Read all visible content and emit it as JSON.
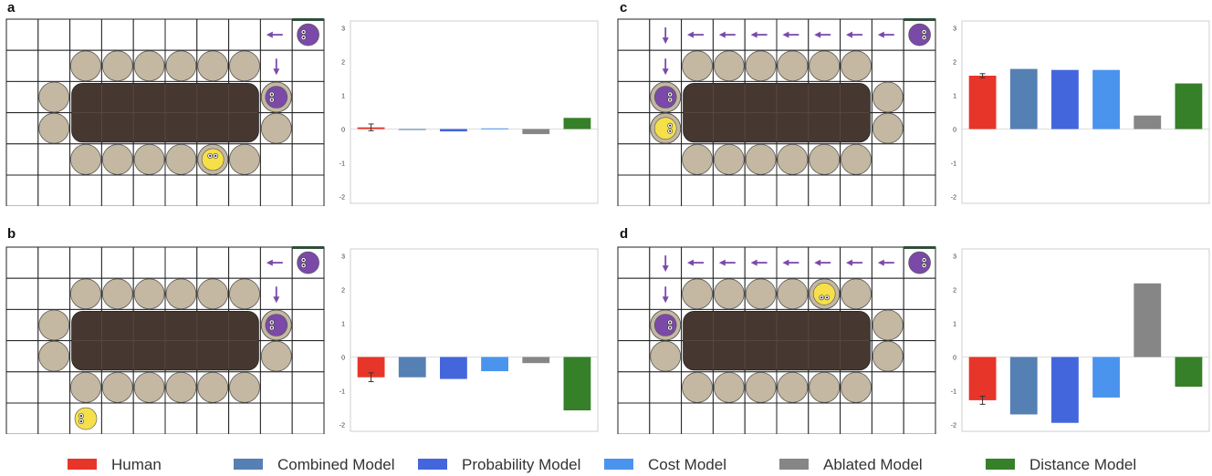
{
  "panels": [
    {
      "label": "a",
      "agent_icon": "purple-agent-icon",
      "target_icon": "yellow-agent-icon"
    },
    {
      "label": "b",
      "agent_icon": "purple-agent-icon",
      "target_icon": "yellow-agent-icon"
    },
    {
      "label": "c",
      "agent_icon": "purple-agent-icon",
      "target_icon": "yellow-agent-icon"
    },
    {
      "label": "d",
      "agent_icon": "purple-agent-icon",
      "target_icon": "yellow-agent-icon"
    }
  ],
  "colors": {
    "Human": "#e8352a",
    "Combined Model": "#5580b3",
    "Probability Model": "#4466dd",
    "Cost Model": "#4a94ee",
    "Ablated Model": "#868686",
    "Distance Model": "#358028",
    "seat": "#c4b8a2",
    "table": "#463830",
    "purple": "#7b4aa8",
    "yellow": "#f5e04a"
  },
  "legend": [
    "Human",
    "Combined Model",
    "Probability Model",
    "Cost Model",
    "Ablated Model",
    "Distance Model"
  ],
  "chart_data": [
    {
      "panel": "a",
      "type": "bar",
      "categories": [
        "Human",
        "Combined Model",
        "Probability Model",
        "Cost Model",
        "Ablated Model",
        "Distance Model"
      ],
      "values": [
        0.05,
        -0.02,
        -0.07,
        0.02,
        -0.15,
        0.33
      ],
      "human_error": 0.1,
      "ylim": [
        -2.2,
        3.2
      ],
      "yticks": [
        "-2",
        "-1",
        "0",
        "1",
        "2",
        "3"
      ]
    },
    {
      "panel": "b",
      "type": "bar",
      "categories": [
        "Human",
        "Combined Model",
        "Probability Model",
        "Cost Model",
        "Ablated Model",
        "Distance Model"
      ],
      "values": [
        -0.6,
        -0.6,
        -0.65,
        -0.42,
        -0.18,
        -1.58
      ],
      "human_error": 0.13,
      "ylim": [
        -2.2,
        3.2
      ],
      "yticks": [
        "-2",
        "-1",
        "0",
        "1",
        "2",
        "3"
      ]
    },
    {
      "panel": "c",
      "type": "bar",
      "categories": [
        "Human",
        "Combined Model",
        "Probability Model",
        "Cost Model",
        "Ablated Model",
        "Distance Model"
      ],
      "values": [
        1.58,
        1.78,
        1.75,
        1.75,
        0.4,
        1.35
      ],
      "human_error": 0.06,
      "ylim": [
        -2.2,
        3.2
      ],
      "yticks": [
        "-2",
        "-1",
        "0",
        "1",
        "2",
        "3"
      ]
    },
    {
      "panel": "d",
      "type": "bar",
      "categories": [
        "Human",
        "Combined Model",
        "Probability Model",
        "Cost Model",
        "Ablated Model",
        "Distance Model"
      ],
      "values": [
        -1.28,
        -1.7,
        -1.95,
        -1.2,
        2.18,
        -0.88
      ],
      "human_error": 0.12,
      "ylim": [
        -2.2,
        3.2
      ],
      "yticks": [
        "-2",
        "-1",
        "0",
        "1",
        "2",
        "3"
      ]
    }
  ]
}
